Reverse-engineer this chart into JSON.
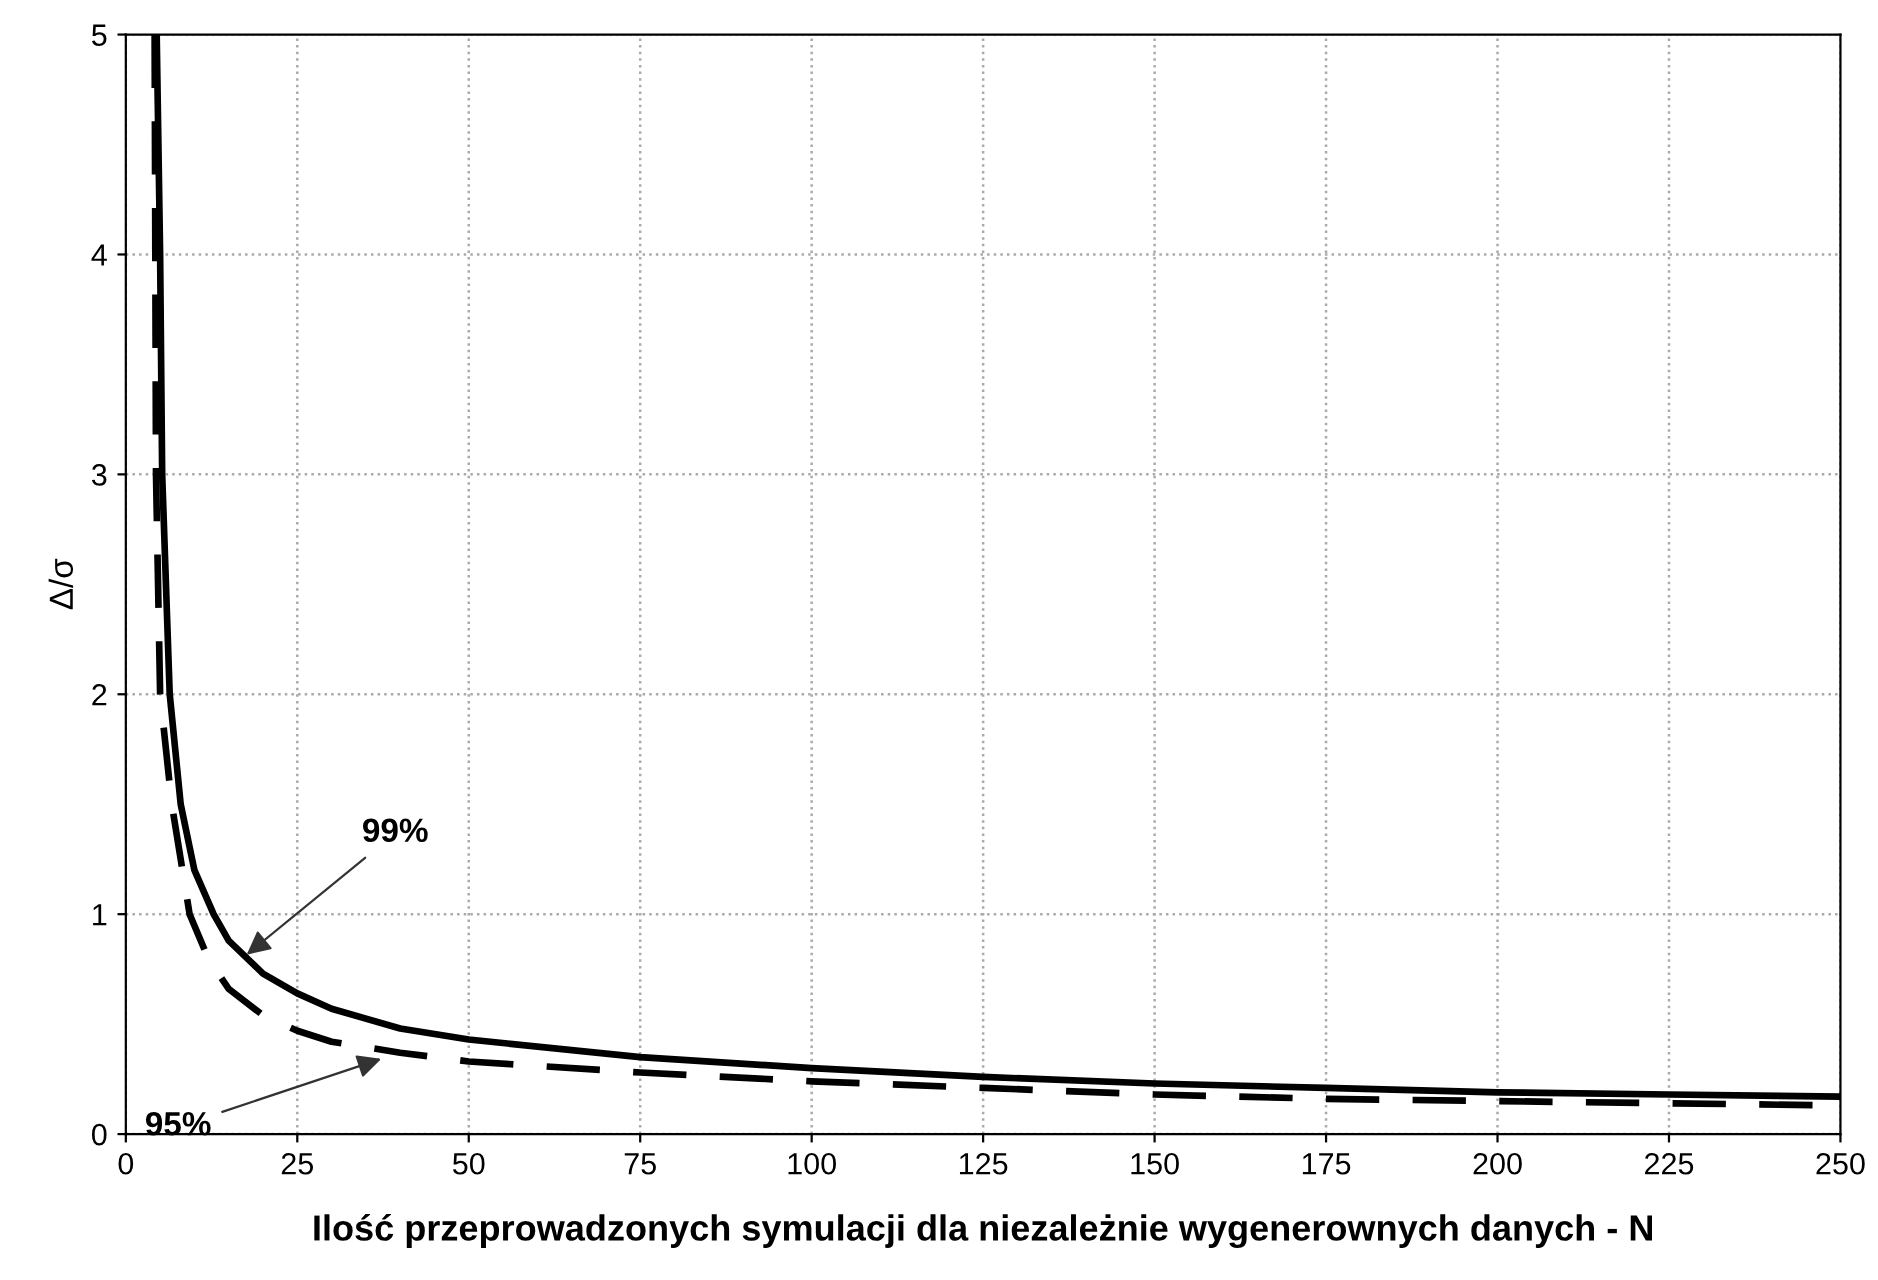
{
  "chart_data": {
    "type": "line",
    "xlabel": "Ilość przeprowadzonych symulacji dla niezależnie wygenerownych danych - N",
    "ylabel": "Δ/σ",
    "xlim": [
      0,
      250
    ],
    "ylim": [
      0,
      5
    ],
    "xticks": [
      0,
      25,
      50,
      75,
      100,
      125,
      150,
      175,
      200,
      225,
      250
    ],
    "yticks": [
      0,
      1,
      2,
      3,
      4,
      5
    ],
    "grid": true,
    "marker": "none",
    "series": [
      {
        "color": "#000000",
        "line_style": "solid",
        "x": [
          4.5,
          5,
          5.3,
          6.4,
          8,
          10,
          12.8,
          15,
          20,
          25,
          30,
          40,
          50,
          75,
          100,
          125,
          150,
          175,
          200,
          225,
          250
        ],
        "values": [
          5.0,
          4.0,
          3.0,
          2.0,
          1.5,
          1.2,
          1.0,
          0.88,
          0.73,
          0.64,
          0.57,
          0.48,
          0.43,
          0.35,
          0.3,
          0.26,
          0.23,
          0.21,
          0.19,
          0.18,
          0.17
        ]
      },
      {
        "color": "#000000",
        "line_style": "dashed",
        "x": [
          4.2,
          4.4,
          5,
          6.7,
          9.3,
          12,
          15,
          20,
          25,
          30,
          40,
          50,
          75,
          100,
          125,
          150,
          175,
          200,
          225,
          250
        ],
        "values": [
          5.0,
          3.0,
          2.0,
          1.5,
          1.0,
          0.8,
          0.66,
          0.54,
          0.47,
          0.42,
          0.37,
          0.33,
          0.28,
          0.24,
          0.21,
          0.18,
          0.16,
          0.15,
          0.14,
          0.13
        ]
      }
    ],
    "annotations": [
      {
        "text": "99%",
        "x": 17,
        "y": 0.8
      },
      {
        "text": "95%",
        "x": 38,
        "y": 0.35
      }
    ]
  }
}
